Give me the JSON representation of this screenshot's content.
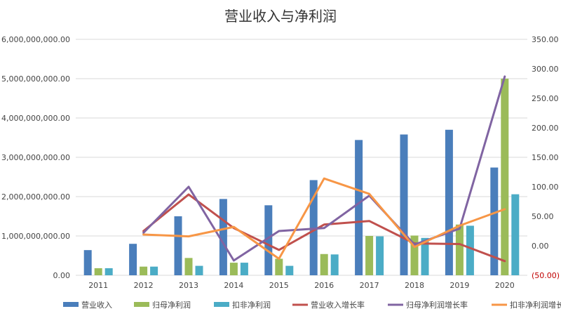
{
  "chart_data": {
    "type": "bar",
    "title": "营业收入与净利润",
    "categories": [
      "2011",
      "2012",
      "2013",
      "2014",
      "2015",
      "2016",
      "2017",
      "2018",
      "2019",
      "2020"
    ],
    "y_left": {
      "min": 0,
      "max": 6000000000,
      "ticks": [
        0,
        1000000000,
        2000000000,
        3000000000,
        4000000000,
        5000000000,
        6000000000
      ],
      "tick_labels": [
        "0.00",
        "1,000,000,000.00",
        "2,000,000,000.00",
        "3,000,000,000.00",
        "4,000,000,000.00",
        "5,000,000,000.00",
        "6,000,000,000.00"
      ]
    },
    "y_right": {
      "min": -50,
      "max": 350,
      "ticks": [
        -50,
        0,
        50,
        100,
        150,
        200,
        250,
        300,
        350
      ],
      "tick_labels": [
        "(50.00)",
        "0.00",
        "50.00",
        "100.00",
        "150.00",
        "200.00",
        "250.00",
        "300.00",
        "350.00"
      ]
    },
    "gridlines": true,
    "legend_position": "bottom",
    "series": [
      {
        "name": "营业收入",
        "kind": "bar",
        "axis": "left",
        "color": "#4a7ebb",
        "values": [
          640000000,
          800000000,
          1500000000,
          1940000000,
          1780000000,
          2420000000,
          3440000000,
          3580000000,
          3700000000,
          2740000000
        ]
      },
      {
        "name": "归母净利润",
        "kind": "bar",
        "axis": "left",
        "color": "#9bbb59",
        "values": [
          180000000,
          220000000,
          440000000,
          320000000,
          420000000,
          540000000,
          1000000000,
          1010000000,
          1290000000,
          5000000000
        ]
      },
      {
        "name": "扣非净利润",
        "kind": "bar",
        "axis": "left",
        "color": "#4bacc6",
        "values": [
          180000000,
          220000000,
          240000000,
          320000000,
          240000000,
          530000000,
          990000000,
          950000000,
          1260000000,
          2060000000
        ]
      },
      {
        "name": "营业收入增长率",
        "kind": "line",
        "axis": "right",
        "color": "#c0504d",
        "values": [
          null,
          25,
          87,
          30,
          -7,
          36,
          42,
          4,
          3,
          -26
        ]
      },
      {
        "name": "归母净利润增长率",
        "kind": "line",
        "axis": "right",
        "color": "#8064a2",
        "values": [
          null,
          22,
          100,
          -25,
          25,
          30,
          85,
          2,
          29,
          287
        ]
      },
      {
        "name": "扣非净利润增长率",
        "kind": "line",
        "axis": "right",
        "color": "#f79646",
        "values": [
          null,
          19,
          16,
          32,
          -22,
          114,
          88,
          -2,
          34,
          62
        ]
      }
    ]
  }
}
